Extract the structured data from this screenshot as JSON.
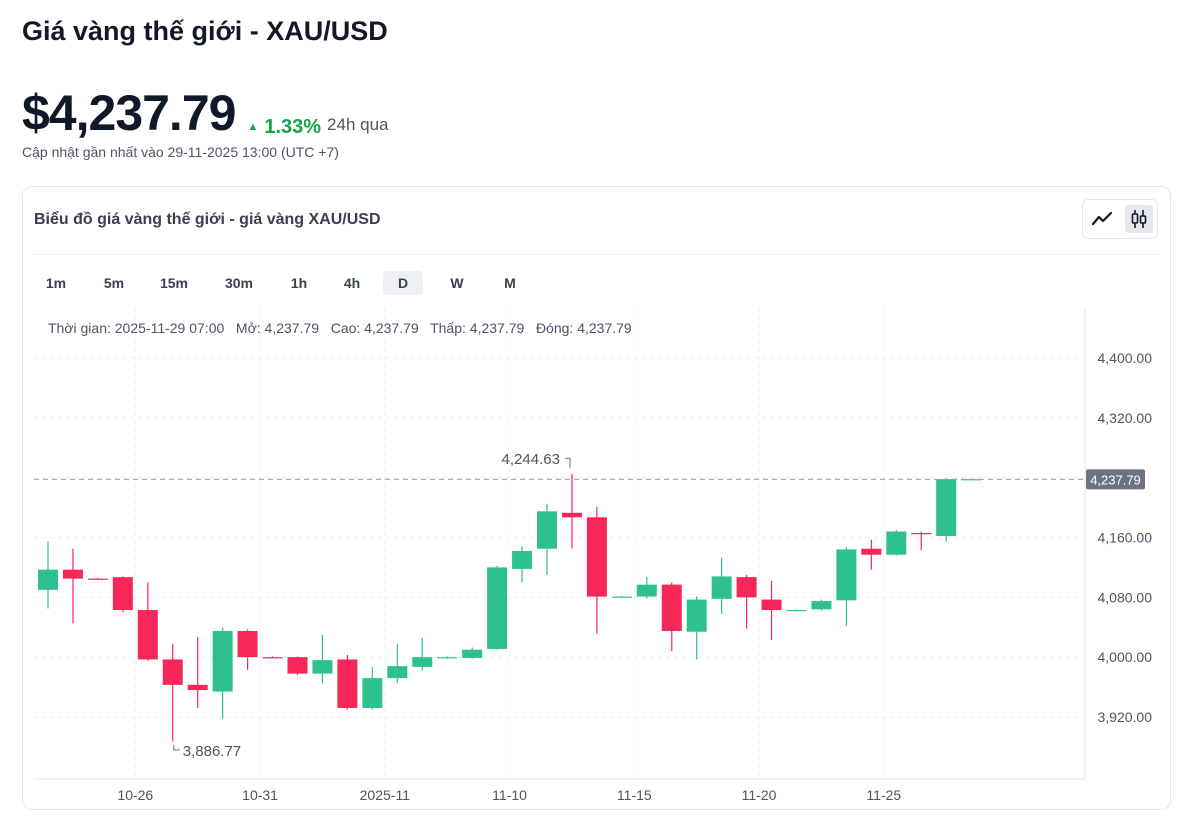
{
  "page": {
    "title": "Giá vàng thế giới - XAU/USD",
    "price": "$4,237.79",
    "change": "1.33%",
    "change_period": "24h qua",
    "updated": "Cập nhật gần nhất vào 29-11-2025 13:00 (UTC +7)"
  },
  "colors": {
    "up": "#2ec08d",
    "down": "#f6285a",
    "change": "#16a34a"
  },
  "chart_card": {
    "title": "Biểu đồ giá vàng thế giới - giá vàng XAU/USD",
    "type_buttons": [
      {
        "name": "line-chart-icon",
        "active": false
      },
      {
        "name": "candlestick-icon",
        "active": true
      }
    ],
    "tabs": [
      "1m",
      "5m",
      "15m",
      "30m",
      "1h",
      "4h",
      "D",
      "W",
      "M"
    ],
    "active_tab": "D",
    "info": "Thời gian: 2025-11-29 07:00   Mở: 4,237.79   Cao: 4,237.79   Thấp: 4,237.79   Đóng: 4,237.79"
  },
  "chart_data": {
    "type": "candlestick",
    "title": "",
    "xlabel": "",
    "ylabel": "",
    "ylim": [
      3840,
      4440
    ],
    "y_ticks": [
      "3,920.00",
      "4,000.00",
      "4,080.00",
      "4,160.00",
      "4,320.00",
      "4,400.00"
    ],
    "x_ticks": [
      {
        "label": "10-26",
        "index": 3.5
      },
      {
        "label": "10-31",
        "index": 8.5
      },
      {
        "label": "2025-11",
        "index": 13.5
      },
      {
        "label": "11-10",
        "index": 18.5
      },
      {
        "label": "11-15",
        "index": 23.5
      },
      {
        "label": "11-20",
        "index": 28.5
      },
      {
        "label": "11-25",
        "index": 33.5
      }
    ],
    "current_price": 4237.79,
    "current_price_label": "4,237.79",
    "annotations": [
      {
        "label": "4,244.63",
        "value": 4244.63,
        "index": 21,
        "kind": "high"
      },
      {
        "label": "3,886.77",
        "value": 3886.77,
        "index": 5,
        "kind": "low"
      }
    ],
    "candles": [
      {
        "o": 4090,
        "h": 4155,
        "l": 4065,
        "c": 4117
      },
      {
        "o": 4117,
        "h": 4145,
        "l": 4045,
        "c": 4105
      },
      {
        "o": 4105,
        "h": 4106,
        "l": 4104,
        "c": 4104
      },
      {
        "o": 4107,
        "h": 4108,
        "l": 4060,
        "c": 4063
      },
      {
        "o": 4063,
        "h": 4100,
        "l": 3995,
        "c": 3997
      },
      {
        "o": 3997,
        "h": 4018,
        "l": 3887,
        "c": 3963
      },
      {
        "o": 3963,
        "h": 4027,
        "l": 3932,
        "c": 3956
      },
      {
        "o": 3954,
        "h": 4040,
        "l": 3918,
        "c": 4035
      },
      {
        "o": 4035,
        "h": 4037,
        "l": 3983,
        "c": 4000
      },
      {
        "o": 4000,
        "h": 4001,
        "l": 3999,
        "c": 3999
      },
      {
        "o": 4000,
        "h": 4001,
        "l": 3976,
        "c": 3978
      },
      {
        "o": 3978,
        "h": 4030,
        "l": 3965,
        "c": 3996
      },
      {
        "o": 3997,
        "h": 4003,
        "l": 3930,
        "c": 3932
      },
      {
        "o": 3932,
        "h": 3987,
        "l": 3930,
        "c": 3972
      },
      {
        "o": 3972,
        "h": 4018,
        "l": 3965,
        "c": 3988
      },
      {
        "o": 3987,
        "h": 4026,
        "l": 3982,
        "c": 4000
      },
      {
        "o": 3999,
        "h": 4001,
        "l": 3998,
        "c": 4000
      },
      {
        "o": 3999,
        "h": 4013,
        "l": 3998,
        "c": 4010
      },
      {
        "o": 4011,
        "h": 4122,
        "l": 4010,
        "c": 4120
      },
      {
        "o": 4118,
        "h": 4148,
        "l": 4100,
        "c": 4142
      },
      {
        "o": 4145,
        "h": 4205,
        "l": 4110,
        "c": 4195
      },
      {
        "o": 4193,
        "h": 4245,
        "l": 4145,
        "c": 4187
      },
      {
        "o": 4187,
        "h": 4201,
        "l": 4031,
        "c": 4081
      },
      {
        "o": 4081,
        "h": 4082,
        "l": 4080,
        "c": 4081
      },
      {
        "o": 4081,
        "h": 4107,
        "l": 4078,
        "c": 4097
      },
      {
        "o": 4097,
        "h": 4100,
        "l": 4008,
        "c": 4035
      },
      {
        "o": 4034,
        "h": 4081,
        "l": 3997,
        "c": 4077
      },
      {
        "o": 4078,
        "h": 4133,
        "l": 4058,
        "c": 4108
      },
      {
        "o": 4107,
        "h": 4110,
        "l": 4038,
        "c": 4080
      },
      {
        "o": 4077,
        "h": 4102,
        "l": 4023,
        "c": 4063
      },
      {
        "o": 4063,
        "h": 4064,
        "l": 4062,
        "c": 4063
      },
      {
        "o": 4064,
        "h": 4077,
        "l": 4062,
        "c": 4075
      },
      {
        "o": 4076,
        "h": 4147,
        "l": 4042,
        "c": 4144
      },
      {
        "o": 4145,
        "h": 4157,
        "l": 4117,
        "c": 4137
      },
      {
        "o": 4137,
        "h": 4170,
        "l": 4136,
        "c": 4168
      },
      {
        "o": 4166,
        "h": 4168,
        "l": 4143,
        "c": 4165
      },
      {
        "o": 4162,
        "h": 4239,
        "l": 4155,
        "c": 4238
      },
      {
        "o": 4238,
        "h": 4238,
        "l": 4237,
        "c": 4238
      }
    ]
  }
}
